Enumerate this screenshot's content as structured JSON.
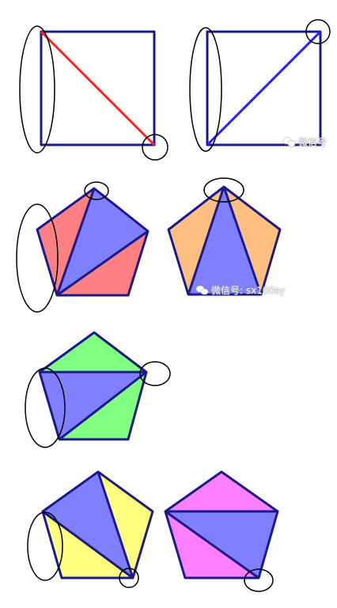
{
  "figures": [
    {
      "id": "square-1",
      "shape": "square",
      "fill_colors": [],
      "diagonal_color": "#ff2222",
      "highlight": "left-side-and-bottom-right-corner"
    },
    {
      "id": "square-2",
      "shape": "square",
      "fill_colors": [],
      "diagonal_color": "#2222ff",
      "highlight": "left-side-and-top-right-corner"
    },
    {
      "id": "pentagon-1",
      "shape": "pentagon",
      "fill_colors": [
        "#ff8080",
        "#8080ff"
      ],
      "highlight": "left-side-and-top-vertex"
    },
    {
      "id": "pentagon-2",
      "shape": "pentagon",
      "fill_colors": [
        "#ffbf80",
        "#8080ff"
      ],
      "highlight": "top-vertex"
    },
    {
      "id": "pentagon-3",
      "shape": "pentagon",
      "fill_colors": [
        "#80ff80",
        "#8080ff"
      ],
      "highlight": "left-side-and-right-vertex"
    },
    {
      "id": "pentagon-4",
      "shape": "pentagon",
      "fill_colors": [
        "#ffff80",
        "#8080ff"
      ],
      "highlight": "left-side-and-bottom-right-vertex"
    },
    {
      "id": "pentagon-5",
      "shape": "pentagon",
      "fill_colors": [
        "#ff80ff",
        "#8080ff"
      ],
      "highlight": "bottom-right-vertex"
    }
  ],
  "outline_color": "#1a1a8c",
  "watermarks": [
    {
      "text": "微信号"
    },
    {
      "text": "微信号: sx100sy"
    }
  ]
}
